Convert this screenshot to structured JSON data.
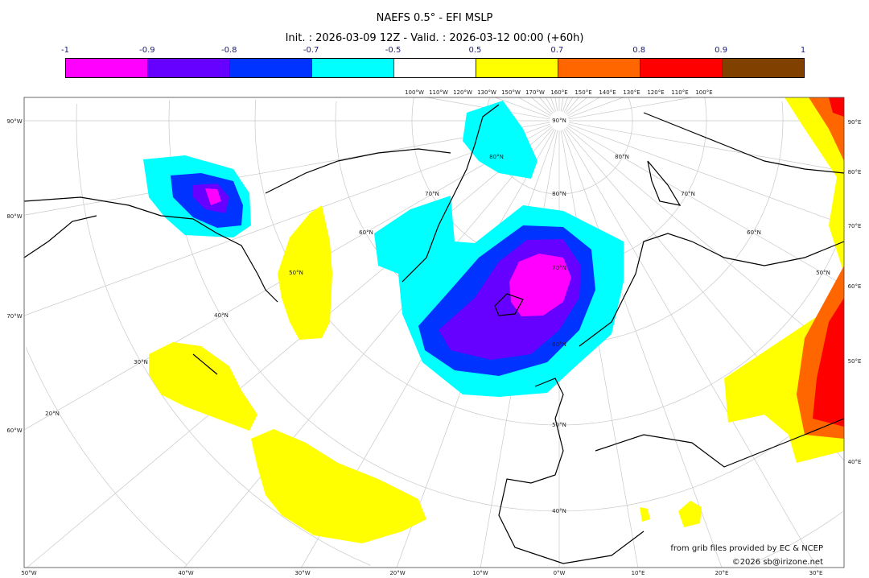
{
  "title": "NAEFS 0.5° - EFI MSLP",
  "subtitle": "Init. : 2026-03-09 12Z - Valid. : 2026-03-12 00:00 (+60h)",
  "colorbar": {
    "ticks": [
      "-1",
      "-0.9",
      "-0.8",
      "-0.7",
      "-0.5",
      "0.5",
      "0.7",
      "0.8",
      "0.9",
      "1"
    ],
    "colors": [
      "#ff00ff",
      "#6600ff",
      "#0033ff",
      "#00ffff",
      "#ffffff",
      "#ffff00",
      "#ff6600",
      "#ff0000",
      "#804000"
    ]
  },
  "map": {
    "projection": "polar stereographic",
    "pole_label": "90°N",
    "top_labels": [
      "100°W",
      "110°W",
      "120°W",
      "130°W",
      "150°W",
      "170°W",
      "160°E",
      "150°E",
      "140°E",
      "130°E",
      "120°E",
      "110°E",
      "100°E"
    ],
    "left_labels": [
      "90°W",
      "80°W",
      "70°W",
      "60°W"
    ],
    "right_labels": [
      "90°E",
      "80°E",
      "70°E",
      "60°E",
      "50°E",
      "40°E"
    ],
    "bottom_labels": [
      "50°W",
      "40°W",
      "30°W",
      "20°W",
      "10°W",
      "0°W",
      "10°E",
      "20°E",
      "30°E"
    ],
    "lat_labels": [
      "80°N",
      "70°N",
      "60°N",
      "50°N",
      "40°N",
      "30°N",
      "20°N"
    ]
  },
  "credits": {
    "source": "from grib files provided by EC & NCEP",
    "copyright": "©2026 sb@irizone.net"
  }
}
